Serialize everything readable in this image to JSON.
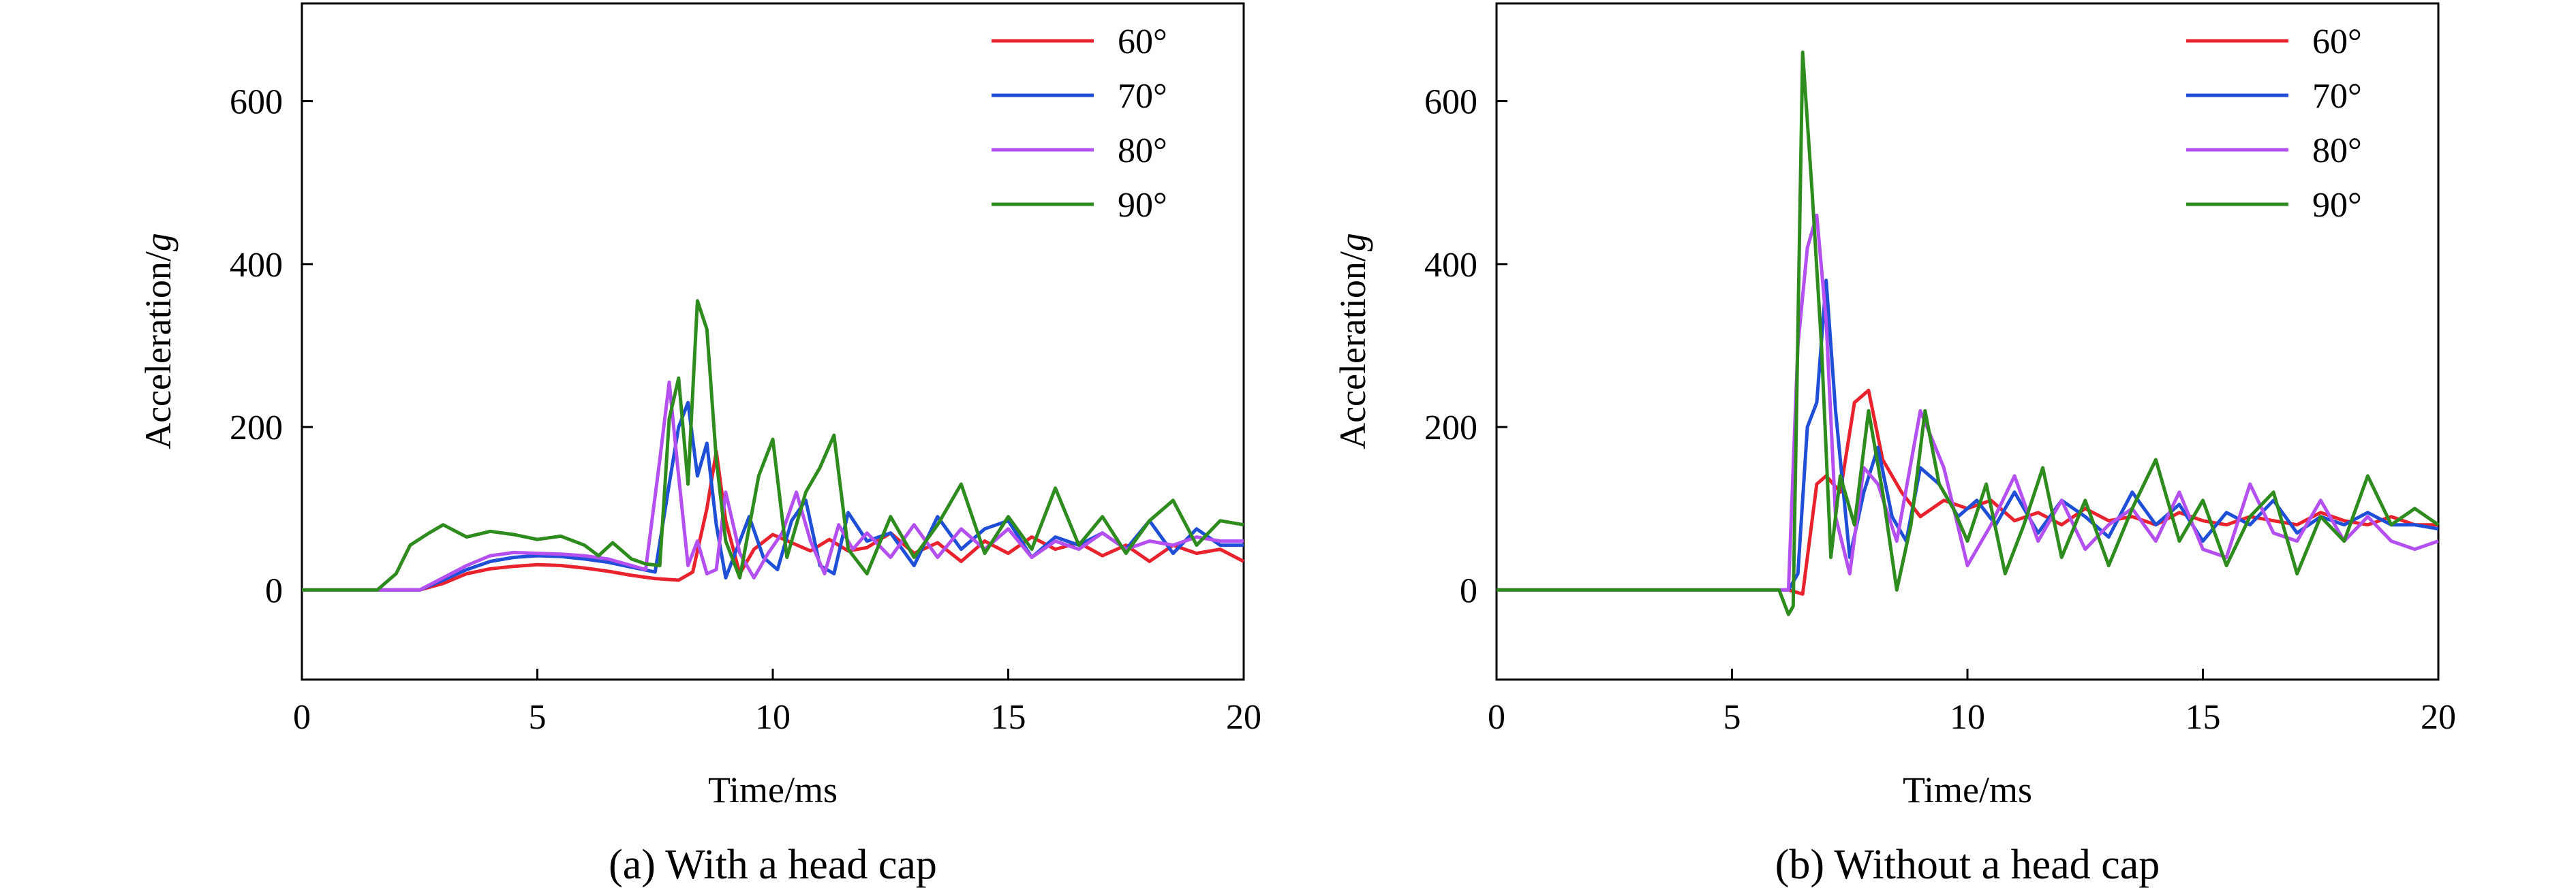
{
  "chart_data": [
    {
      "type": "line",
      "caption": "(a) With a head cap",
      "xlabel": "Time/ms",
      "ylabel_prefix": "Acceleration/",
      "ylabel_unit": "g",
      "xlim": [
        0,
        20
      ],
      "ylim": [
        -110,
        720
      ],
      "xticks": [
        0,
        5,
        10,
        15,
        20
      ],
      "yticks": [
        0,
        200,
        400,
        600
      ],
      "legend_position": "top-right",
      "series": [
        {
          "name": "60°",
          "color": "#e8232e",
          "x": [
            0,
            1,
            2,
            2.5,
            3,
            3.5,
            4,
            4.5,
            5,
            5.5,
            6,
            6.5,
            7,
            7.5,
            8,
            8.3,
            8.6,
            8.8,
            9,
            9.3,
            9.6,
            10,
            10.4,
            10.8,
            11.2,
            11.6,
            12,
            12.5,
            13,
            13.5,
            14,
            14.5,
            15,
            15.5,
            16,
            16.5,
            17,
            17.5,
            18,
            18.5,
            19,
            19.5,
            20
          ],
          "y": [
            0,
            0,
            0,
            0,
            8,
            20,
            26,
            29,
            31,
            30,
            27,
            23,
            18,
            14,
            12,
            22,
            100,
            170,
            85,
            20,
            50,
            68,
            58,
            48,
            62,
            48,
            52,
            70,
            45,
            58,
            35,
            60,
            45,
            65,
            50,
            58,
            42,
            55,
            35,
            55,
            45,
            50,
            35
          ]
        },
        {
          "name": "70°",
          "color": "#1f4fd6",
          "x": [
            0,
            1,
            2,
            2.5,
            3,
            3.5,
            4,
            4.5,
            5,
            5.5,
            6,
            6.5,
            7,
            7.5,
            7.8,
            8.0,
            8.2,
            8.4,
            8.6,
            8.8,
            9.0,
            9.2,
            9.5,
            9.8,
            10.1,
            10.4,
            10.7,
            11.0,
            11.3,
            11.6,
            12,
            12.5,
            13,
            13.5,
            14,
            14.5,
            15,
            15.5,
            16,
            16.5,
            17,
            17.5,
            18,
            18.5,
            19,
            19.5,
            20
          ],
          "y": [
            0,
            0,
            0,
            0,
            12,
            25,
            35,
            40,
            42,
            41,
            38,
            34,
            28,
            22,
            130,
            200,
            230,
            140,
            180,
            80,
            15,
            45,
            90,
            40,
            25,
            85,
            110,
            30,
            20,
            95,
            60,
            70,
            30,
            90,
            50,
            75,
            85,
            40,
            65,
            55,
            70,
            50,
            85,
            45,
            75,
            55,
            55
          ]
        },
        {
          "name": "80°",
          "color": "#b44ff0",
          "x": [
            0,
            1,
            2,
            2.5,
            3,
            3.5,
            4,
            4.5,
            5,
            5.5,
            6,
            6.5,
            7,
            7.3,
            7.6,
            7.8,
            8.0,
            8.2,
            8.4,
            8.6,
            8.8,
            9.0,
            9.3,
            9.6,
            9.9,
            10.2,
            10.5,
            10.8,
            11.1,
            11.4,
            11.7,
            12,
            12.5,
            13,
            13.5,
            14,
            14.5,
            15,
            15.5,
            16,
            16.5,
            17,
            17.5,
            18,
            18.5,
            19,
            19.5,
            20
          ],
          "y": [
            0,
            0,
            0,
            0,
            15,
            30,
            42,
            46,
            45,
            44,
            42,
            38,
            30,
            25,
            160,
            255,
            140,
            30,
            60,
            20,
            25,
            120,
            45,
            15,
            45,
            70,
            120,
            60,
            20,
            80,
            50,
            70,
            40,
            80,
            40,
            75,
            50,
            75,
            40,
            60,
            50,
            70,
            50,
            60,
            55,
            65,
            60,
            60
          ]
        },
        {
          "name": "90°",
          "color": "#2e8b1e",
          "x": [
            0,
            1,
            1.6,
            2,
            2.3,
            2.7,
            3,
            3.5,
            4,
            4.5,
            5,
            5.5,
            6,
            6.3,
            6.6,
            7,
            7.3,
            7.6,
            7.8,
            8.0,
            8.2,
            8.4,
            8.6,
            8.8,
            9.0,
            9.3,
            9.7,
            10.0,
            10.3,
            10.7,
            11.0,
            11.3,
            11.6,
            12,
            12.5,
            13,
            13.5,
            14,
            14.5,
            15,
            15.5,
            16,
            16.5,
            17,
            17.5,
            18,
            18.5,
            19,
            19.5,
            20
          ],
          "y": [
            0,
            0,
            0,
            20,
            55,
            70,
            80,
            65,
            72,
            68,
            62,
            66,
            55,
            42,
            58,
            38,
            32,
            30,
            210,
            260,
            130,
            355,
            320,
            160,
            60,
            15,
            140,
            185,
            40,
            120,
            150,
            190,
            50,
            20,
            90,
            40,
            80,
            130,
            45,
            90,
            50,
            125,
            55,
            90,
            45,
            85,
            110,
            55,
            85,
            80
          ]
        }
      ]
    },
    {
      "type": "line",
      "caption": "(b) Without a head cap",
      "xlabel": "Time/ms",
      "ylabel_prefix": "Acceleration/",
      "ylabel_unit": "g",
      "xlim": [
        0,
        20
      ],
      "ylim": [
        -110,
        720
      ],
      "xticks": [
        0,
        5,
        10,
        15,
        20
      ],
      "yticks": [
        0,
        200,
        400,
        600
      ],
      "legend_position": "top-right",
      "series": [
        {
          "name": "60°",
          "color": "#e8232e",
          "x": [
            0,
            1,
            2,
            3,
            4,
            5,
            6,
            6.2,
            6.5,
            6.8,
            7.0,
            7.3,
            7.6,
            7.9,
            8.2,
            8.6,
            9.0,
            9.5,
            10,
            10.5,
            11,
            11.5,
            12,
            12.5,
            13,
            13.5,
            14,
            14.5,
            15,
            15.5,
            16,
            16.5,
            17,
            17.5,
            18,
            18.5,
            19,
            19.5,
            20
          ],
          "y": [
            0,
            0,
            0,
            0,
            0,
            0,
            0,
            0,
            -5,
            130,
            140,
            120,
            230,
            245,
            160,
            120,
            90,
            110,
            100,
            110,
            85,
            95,
            80,
            100,
            85,
            90,
            80,
            95,
            85,
            80,
            90,
            85,
            80,
            95,
            85,
            80,
            90,
            80,
            80
          ]
        },
        {
          "name": "70°",
          "color": "#1f4fd6",
          "x": [
            0,
            1,
            2,
            3,
            4,
            5,
            6,
            6.2,
            6.4,
            6.6,
            6.8,
            7.0,
            7.2,
            7.5,
            7.8,
            8.1,
            8.4,
            8.7,
            9.0,
            9.4,
            9.8,
            10.2,
            10.6,
            11.0,
            11.5,
            12,
            12.5,
            13,
            13.5,
            14,
            14.5,
            15,
            15.5,
            16,
            16.5,
            17,
            17.5,
            18,
            18.5,
            19,
            19.5,
            20
          ],
          "y": [
            0,
            0,
            0,
            0,
            0,
            0,
            0,
            0,
            20,
            200,
            230,
            380,
            220,
            40,
            120,
            175,
            90,
            60,
            150,
            130,
            90,
            110,
            80,
            120,
            70,
            110,
            90,
            65,
            120,
            80,
            105,
            60,
            95,
            80,
            110,
            70,
            90,
            80,
            95,
            80,
            80,
            75
          ]
        },
        {
          "name": "80°",
          "color": "#b44ff0",
          "x": [
            0,
            1,
            2,
            3,
            4,
            5,
            6,
            6.2,
            6.4,
            6.6,
            6.8,
            7.0,
            7.2,
            7.5,
            7.8,
            8.1,
            8.5,
            9.0,
            9.5,
            10.0,
            10.5,
            11.0,
            11.5,
            12,
            12.5,
            13,
            13.5,
            14,
            14.5,
            15,
            15.5,
            16,
            16.5,
            17,
            17.5,
            18,
            18.5,
            19,
            19.5,
            20
          ],
          "y": [
            0,
            0,
            0,
            0,
            0,
            0,
            0,
            0,
            300,
            420,
            460,
            330,
            90,
            20,
            150,
            130,
            60,
            220,
            150,
            30,
            80,
            140,
            60,
            110,
            50,
            80,
            100,
            60,
            120,
            50,
            40,
            130,
            70,
            60,
            110,
            60,
            90,
            60,
            50,
            60
          ]
        },
        {
          "name": "90°",
          "color": "#2e8b1e",
          "x": [
            0,
            1,
            2,
            3,
            4,
            5,
            6,
            6.2,
            6.3,
            6.5,
            6.7,
            6.9,
            7.1,
            7.3,
            7.6,
            7.9,
            8.2,
            8.5,
            8.8,
            9.1,
            9.4,
            9.7,
            10.0,
            10.4,
            10.8,
            11.2,
            11.6,
            12,
            12.5,
            13,
            13.5,
            14,
            14.5,
            15,
            15.5,
            16,
            16.5,
            17,
            17.5,
            18,
            18.5,
            19,
            19.5,
            20
          ],
          "y": [
            0,
            0,
            0,
            0,
            0,
            0,
            0,
            -30,
            -20,
            660,
            490,
            300,
            40,
            140,
            80,
            220,
            120,
            0,
            80,
            220,
            130,
            100,
            60,
            130,
            20,
            80,
            150,
            40,
            110,
            30,
            100,
            160,
            60,
            110,
            30,
            90,
            120,
            20,
            90,
            60,
            140,
            80,
            100,
            80
          ]
        }
      ]
    }
  ]
}
